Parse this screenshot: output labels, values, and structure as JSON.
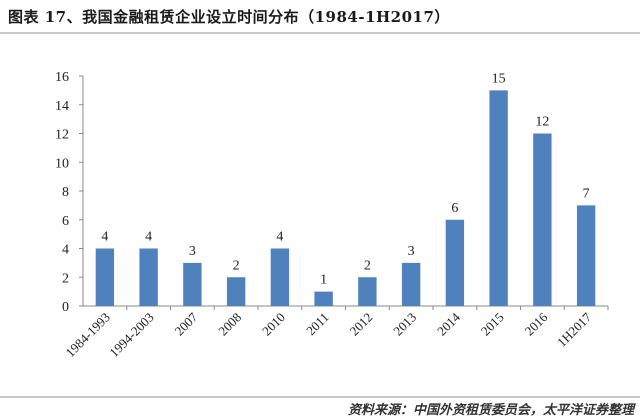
{
  "header": {
    "title": "图表 17、我国金融租赁企业设立时间分布（1984-1H2017）"
  },
  "footer": {
    "source": "资料来源：中国外资租赁委员会，太平洋证券整理"
  },
  "chart_data": {
    "type": "bar",
    "categories": [
      "1984-1993",
      "1994-2003",
      "2007",
      "2008",
      "2010",
      "2011",
      "2012",
      "2013",
      "2014",
      "2015",
      "2016",
      "1H2017"
    ],
    "values": [
      4,
      4,
      3,
      2,
      4,
      1,
      2,
      3,
      6,
      15,
      12,
      7
    ],
    "data_labels": [
      "4",
      "4",
      "3",
      "2",
      "4",
      "1",
      "2",
      "3",
      "6",
      "15",
      "12",
      "7"
    ],
    "y_ticks": [
      "0",
      "2",
      "4",
      "6",
      "8",
      "10",
      "12",
      "14",
      "16"
    ],
    "ylim": [
      0,
      16
    ],
    "grid": false,
    "bar_color": "#4f81bd",
    "xlabel": "",
    "ylabel": ""
  }
}
